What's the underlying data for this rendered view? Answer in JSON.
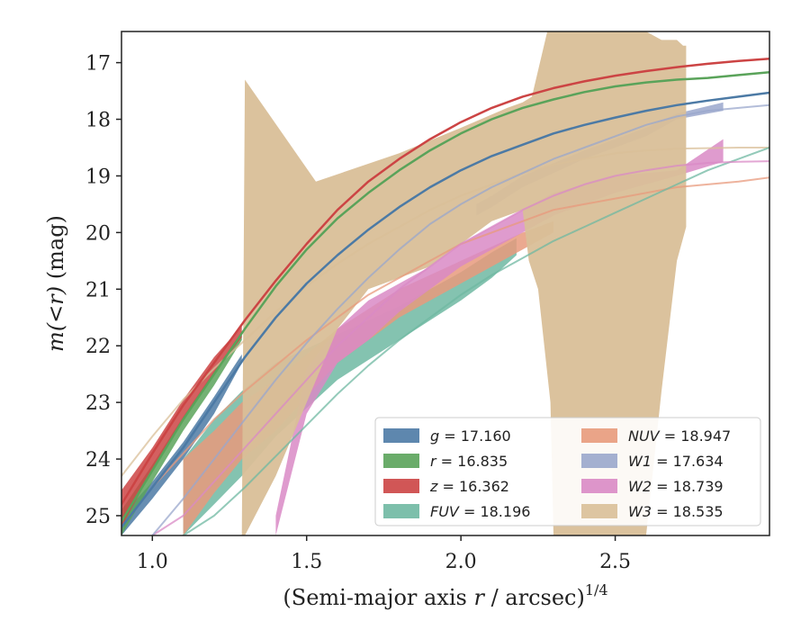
{
  "chart_data": {
    "type": "line",
    "xlabel_main": "(Semi-major axis ",
    "xlabel_var": "r",
    "xlabel_tail": " / arcsec)",
    "xlabel_exp": "1/4",
    "ylabel_var": "m(<r)",
    "ylabel_unit": " (mag)",
    "xlim": [
      0.9,
      3.0
    ],
    "ylim": [
      25.35,
      16.45
    ],
    "y_inverted": true,
    "xticks": [
      1.0,
      1.5,
      2.0,
      2.5
    ],
    "xtick_labels": [
      "1.0",
      "1.5",
      "2.0",
      "2.5"
    ],
    "yticks": [
      17,
      18,
      19,
      20,
      21,
      22,
      23,
      24,
      25
    ],
    "ytick_labels": [
      "17",
      "18",
      "19",
      "20",
      "21",
      "22",
      "23",
      "24",
      "25"
    ],
    "grid": false,
    "legend_position": "lower-right",
    "series": [
      {
        "name": "g",
        "label_value": "17.160",
        "italic": false,
        "color": "#4c7aa5",
        "model": {
          "x": [
            0.9,
            1.0,
            1.1,
            1.2,
            1.3,
            1.4,
            1.5,
            1.6,
            1.7,
            1.8,
            1.9,
            2.0,
            2.1,
            2.2,
            2.3,
            2.4,
            2.5,
            2.6,
            2.7,
            2.8,
            2.9,
            3.0
          ],
          "y": [
            25.2,
            24.5,
            23.8,
            23.0,
            22.2,
            21.5,
            20.9,
            20.4,
            19.95,
            19.55,
            19.2,
            18.9,
            18.65,
            18.45,
            18.25,
            18.1,
            17.97,
            17.85,
            17.75,
            17.67,
            17.6,
            17.53
          ]
        },
        "band": {
          "x": [
            0.9,
            1.0,
            1.1,
            1.2,
            1.29
          ],
          "y_low": [
            25.35,
            24.7,
            24.0,
            23.2,
            22.3
          ],
          "y_high": [
            25.0,
            24.4,
            23.7,
            22.9,
            22.15
          ]
        }
      },
      {
        "name": "r",
        "label_value": "16.835",
        "italic": false,
        "color": "#5aa35a",
        "model": {
          "x": [
            0.9,
            1.0,
            1.1,
            1.2,
            1.3,
            1.4,
            1.5,
            1.6,
            1.7,
            1.8,
            1.9,
            2.0,
            2.1,
            2.2,
            2.3,
            2.4,
            2.5,
            2.6,
            2.7,
            2.8,
            2.9,
            3.0
          ],
          "y": [
            25.1,
            24.2,
            23.3,
            22.5,
            21.7,
            20.95,
            20.3,
            19.75,
            19.3,
            18.9,
            18.55,
            18.25,
            18.0,
            17.8,
            17.65,
            17.52,
            17.42,
            17.35,
            17.3,
            17.27,
            17.22,
            17.17
          ]
        },
        "band": {
          "x": [
            0.9,
            1.0,
            1.1,
            1.2,
            1.29
          ],
          "y_low": [
            25.35,
            24.4,
            23.5,
            22.7,
            21.9
          ],
          "y_high": [
            24.9,
            24.1,
            23.25,
            22.45,
            21.75
          ]
        }
      },
      {
        "name": "z",
        "label_value": "16.362",
        "italic": false,
        "color": "#cc4444",
        "model": {
          "x": [
            0.9,
            1.0,
            1.1,
            1.2,
            1.3,
            1.4,
            1.5,
            1.6,
            1.7,
            1.8,
            1.9,
            2.0,
            2.1,
            2.2,
            2.3,
            2.4,
            2.5,
            2.6,
            2.7,
            2.8,
            2.9,
            3.0
          ],
          "y": [
            24.8,
            23.9,
            23.05,
            22.3,
            21.55,
            20.85,
            20.2,
            19.6,
            19.1,
            18.7,
            18.35,
            18.05,
            17.8,
            17.6,
            17.45,
            17.33,
            17.23,
            17.15,
            17.08,
            17.02,
            16.97,
            16.93
          ]
        },
        "band": {
          "x": [
            0.9,
            1.0,
            1.1,
            1.2,
            1.29
          ],
          "y_low": [
            25.2,
            24.2,
            23.3,
            22.5,
            21.85
          ],
          "y_high": [
            24.55,
            23.8,
            22.95,
            22.2,
            21.65
          ]
        }
      },
      {
        "name": "FUV",
        "label_value": "18.196",
        "italic": true,
        "color": "#6fb8a2",
        "model": {
          "x": [
            1.1,
            1.2,
            1.3,
            1.4,
            1.5,
            1.6,
            1.7,
            1.8,
            1.9,
            2.0,
            2.1,
            2.2,
            2.3,
            2.4,
            2.5,
            2.6,
            2.7,
            2.8,
            2.9,
            3.0
          ],
          "y": [
            25.35,
            25.0,
            24.5,
            23.95,
            23.4,
            22.85,
            22.35,
            21.9,
            21.5,
            21.1,
            20.75,
            20.45,
            20.15,
            19.9,
            19.65,
            19.4,
            19.15,
            18.9,
            18.7,
            18.5
          ]
        },
        "band": {
          "x": [
            1.1,
            1.2,
            1.29,
            1.4,
            1.6,
            1.8,
            2.0,
            2.1,
            2.18
          ],
          "y_low": [
            25.35,
            24.8,
            24.3,
            23.6,
            22.6,
            21.9,
            21.2,
            20.8,
            20.4
          ],
          "y_high": [
            24.0,
            23.3,
            22.8,
            22.3,
            21.8,
            21.3,
            20.7,
            20.35,
            20.1
          ]
        }
      },
      {
        "name": "NUV",
        "label_value": "18.947",
        "italic": true,
        "color": "#e89a7c",
        "model": {
          "x": [
            1.0,
            1.1,
            1.2,
            1.3,
            1.4,
            1.5,
            1.6,
            1.7,
            1.8,
            1.9,
            2.0,
            2.1,
            2.2,
            2.3,
            2.4,
            2.5,
            2.6,
            2.7,
            2.8,
            2.9,
            3.0
          ],
          "y": [
            24.5,
            23.9,
            23.3,
            22.8,
            22.35,
            21.9,
            21.5,
            21.1,
            20.8,
            20.5,
            20.2,
            20.0,
            19.8,
            19.6,
            19.5,
            19.4,
            19.3,
            19.2,
            19.15,
            19.1,
            19.03
          ]
        },
        "band": {
          "x": [
            1.1,
            1.2,
            1.29,
            1.4,
            1.6,
            1.8,
            2.0,
            2.2,
            2.3
          ],
          "y_low": [
            25.35,
            24.6,
            24.0,
            23.5,
            22.3,
            21.5,
            20.9,
            20.3,
            20.0
          ],
          "y_high": [
            24.0,
            23.5,
            23.0,
            22.6,
            21.7,
            21.0,
            20.5,
            20.0,
            19.8
          ]
        }
      },
      {
        "name": "W1",
        "label_value": "17.634",
        "italic": true,
        "color": "#9aa7cc",
        "model": {
          "x": [
            1.0,
            1.1,
            1.2,
            1.3,
            1.4,
            1.5,
            1.6,
            1.7,
            1.8,
            1.9,
            2.0,
            2.1,
            2.2,
            2.3,
            2.4,
            2.5,
            2.6,
            2.7,
            2.8,
            2.9,
            3.0
          ],
          "y": [
            25.35,
            24.7,
            24.0,
            23.3,
            22.6,
            21.95,
            21.35,
            20.8,
            20.3,
            19.85,
            19.5,
            19.2,
            18.95,
            18.7,
            18.5,
            18.3,
            18.1,
            17.95,
            17.85,
            17.8,
            17.75
          ]
        },
        "band": {
          "x": [
            2.05,
            2.1,
            2.2,
            2.4,
            2.6,
            2.7,
            2.85
          ],
          "y_low": [
            19.7,
            19.55,
            19.2,
            18.7,
            18.3,
            18.0,
            17.85
          ],
          "y_high": [
            19.5,
            19.35,
            19.0,
            18.55,
            18.15,
            17.9,
            17.7
          ]
        }
      },
      {
        "name": "W2",
        "label_value": "18.739",
        "italic": true,
        "color": "#d98ac5",
        "model": {
          "x": [
            1.0,
            1.1,
            1.2,
            1.3,
            1.4,
            1.5,
            1.6,
            1.7,
            1.8,
            1.9,
            2.0,
            2.1,
            2.2,
            2.3,
            2.4,
            2.5,
            2.6,
            2.7,
            2.8,
            2.9,
            3.0
          ],
          "y": [
            25.35,
            25.0,
            24.4,
            23.8,
            23.2,
            22.6,
            22.0,
            21.5,
            21.0,
            20.6,
            20.2,
            19.9,
            19.6,
            19.35,
            19.15,
            19.0,
            18.9,
            18.82,
            18.77,
            18.75,
            18.74
          ]
        },
        "band": {
          "x": [
            1.4,
            1.5,
            1.6,
            1.7,
            1.8,
            1.9,
            2.0,
            2.1,
            2.3,
            2.5,
            2.7,
            2.85
          ],
          "y_low": [
            25.35,
            23.2,
            22.3,
            21.9,
            21.4,
            21.0,
            20.6,
            20.3,
            19.7,
            19.3,
            19.0,
            18.75
          ],
          "y_high": [
            25.0,
            22.4,
            21.7,
            21.2,
            20.9,
            20.6,
            20.2,
            19.9,
            19.3,
            19.0,
            18.9,
            18.35
          ]
        }
      },
      {
        "name": "W3",
        "label_value": "18.535",
        "italic": true,
        "color": "#d9bf98",
        "model": {
          "x": [
            0.9,
            1.0,
            1.1,
            1.2,
            1.3,
            1.4,
            1.5,
            1.6,
            1.7,
            1.8,
            1.9,
            2.0,
            2.1,
            2.2,
            2.3,
            2.4,
            2.5,
            2.6,
            2.7,
            2.8,
            2.9,
            3.0
          ],
          "y": [
            24.3,
            23.6,
            22.95,
            22.4,
            21.9,
            21.4,
            20.95,
            20.55,
            20.2,
            19.9,
            19.6,
            19.35,
            19.15,
            18.95,
            18.8,
            18.7,
            18.6,
            18.55,
            18.52,
            18.51,
            18.5,
            18.5
          ]
        },
        "band": {
          "x": [
            1.29,
            1.3,
            1.53,
            1.8,
            2.0,
            2.15,
            2.2,
            2.23,
            2.28,
            2.3,
            2.4,
            2.5,
            2.6,
            2.65,
            2.7,
            2.72,
            2.73,
            2.73,
            2.7,
            2.65,
            2.6,
            2.55,
            2.5,
            2.4,
            2.3,
            2.29,
            2.25,
            2.22,
            2.2,
            2.1,
            1.9,
            1.7,
            1.6,
            1.5,
            1.4,
            1.3
          ],
          "y": [
            25.35,
            17.3,
            19.1,
            18.6,
            18.15,
            17.8,
            17.7,
            17.6,
            16.45,
            16.45,
            16.45,
            16.45,
            16.45,
            16.6,
            16.6,
            16.7,
            16.7,
            19.9,
            20.5,
            22.8,
            25.35,
            25.35,
            25.35,
            25.35,
            25.35,
            23.0,
            21.0,
            20.5,
            19.6,
            19.8,
            20.6,
            21.0,
            21.7,
            23.0,
            24.3,
            25.35
          ]
        }
      }
    ]
  }
}
